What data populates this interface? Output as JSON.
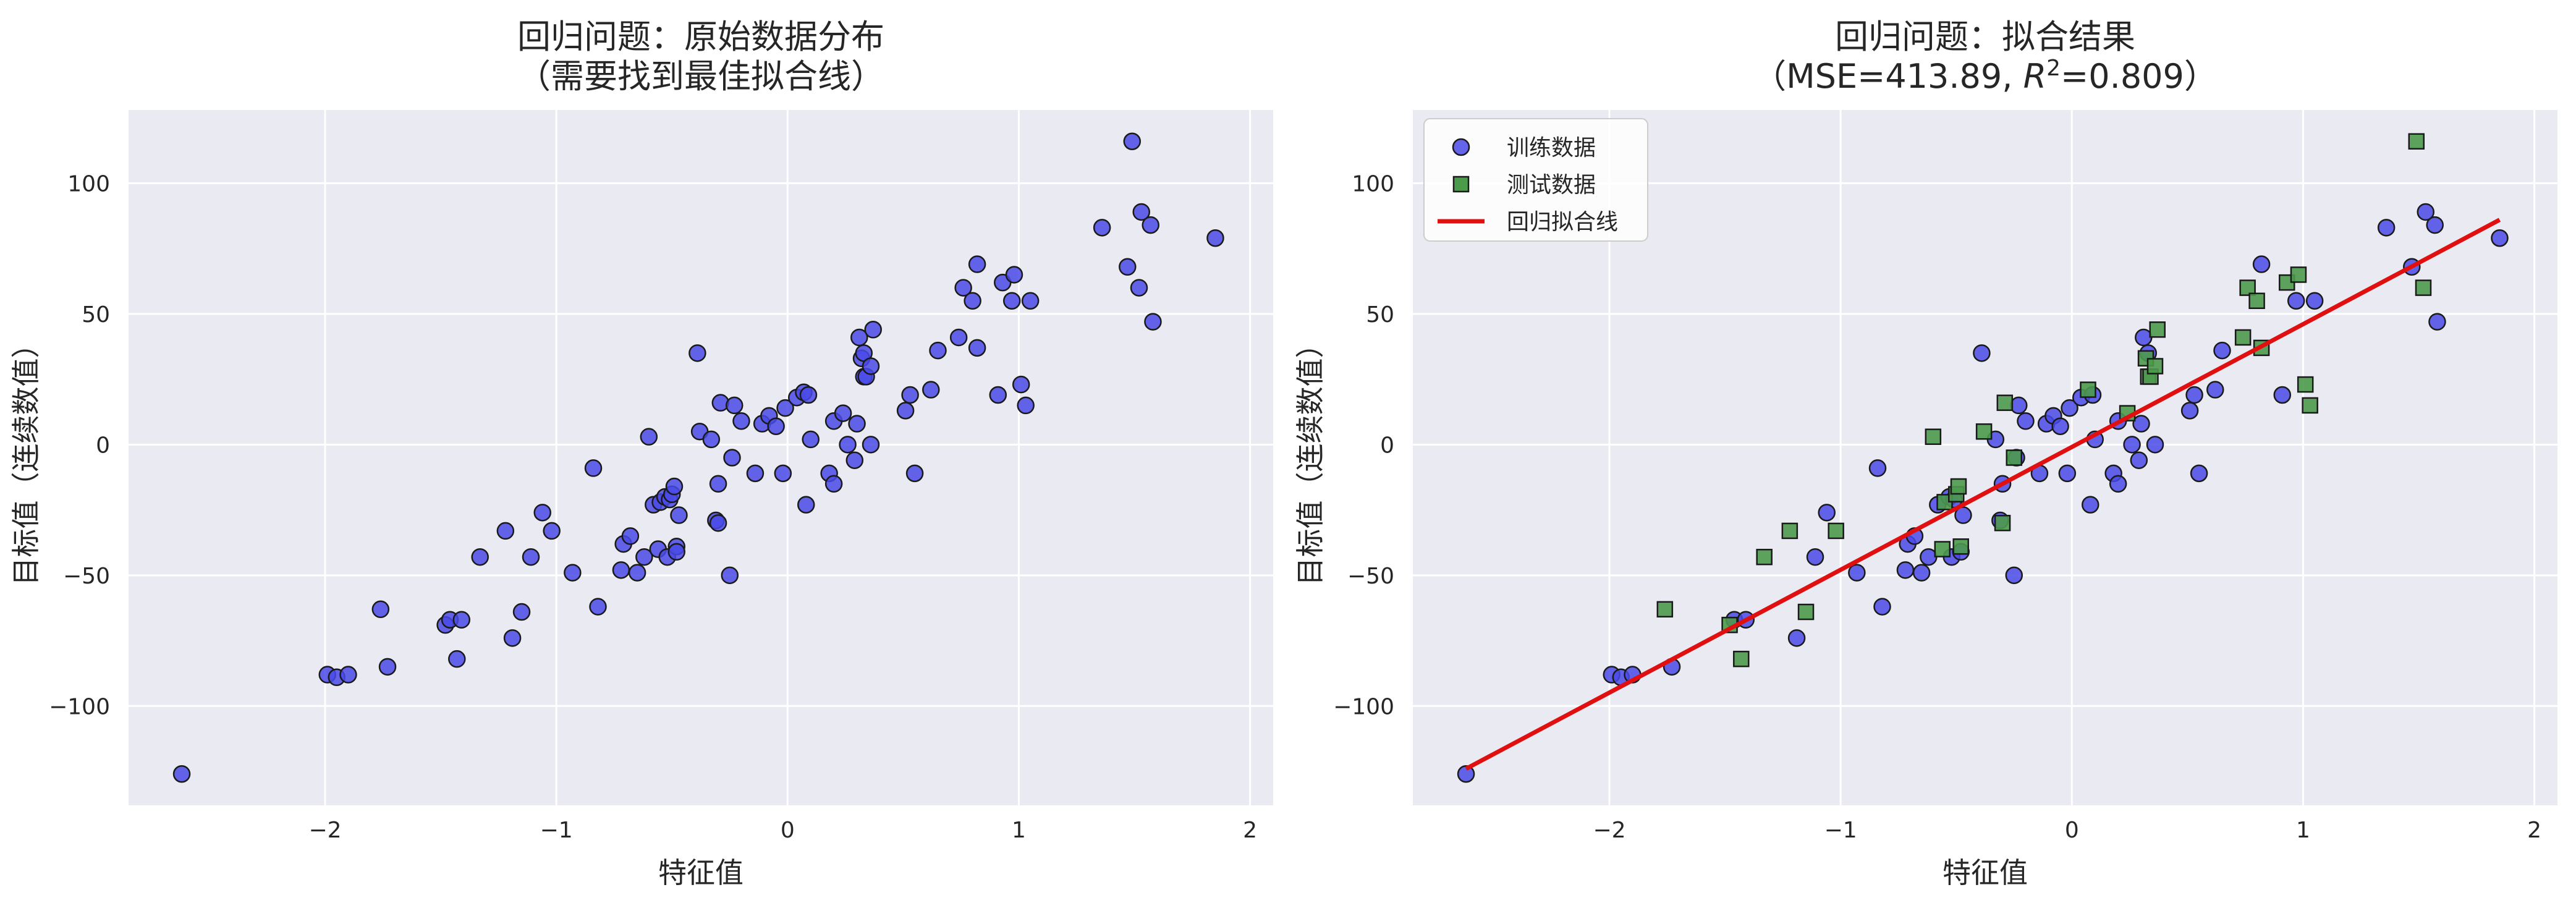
{
  "chart_data": [
    {
      "type": "scatter",
      "title": "回归问题：原始数据分布",
      "subtitle": "（需要找到最佳拟合线）",
      "xlabel": "特征值",
      "ylabel": "目标值（连续数值）",
      "xlim": [
        -2.85,
        2.1
      ],
      "ylim": [
        -138,
        128
      ],
      "xticks": [
        -2,
        -1,
        0,
        1,
        2
      ],
      "xtick_labels": [
        "−2",
        "−1",
        "0",
        "1",
        "2"
      ],
      "yticks": [
        -100,
        -50,
        0,
        50,
        100
      ],
      "ytick_labels": [
        "−100",
        "−50",
        "0",
        "50",
        "100"
      ],
      "grid": true,
      "background": "#eaeaf2",
      "series": [
        {
          "marker": "circle",
          "color": "#4a4ae8",
          "points": [
            [
              -2.62,
              -126
            ],
            [
              -1.99,
              -88
            ],
            [
              -1.95,
              -89
            ],
            [
              -1.9,
              -88
            ],
            [
              -1.76,
              -63
            ],
            [
              -1.73,
              -85
            ],
            [
              -1.48,
              -69
            ],
            [
              -1.46,
              -67
            ],
            [
              -1.43,
              -82
            ],
            [
              -1.41,
              -67
            ],
            [
              -1.33,
              -43
            ],
            [
              -1.22,
              -33
            ],
            [
              -1.19,
              -74
            ],
            [
              -1.15,
              -64
            ],
            [
              -1.11,
              -43
            ],
            [
              -1.06,
              -26
            ],
            [
              -1.02,
              -33
            ],
            [
              -0.93,
              -49
            ],
            [
              -0.82,
              -62
            ],
            [
              -0.84,
              -9
            ],
            [
              -0.72,
              -48
            ],
            [
              -0.71,
              -38
            ],
            [
              -0.68,
              -35
            ],
            [
              -0.65,
              -49
            ],
            [
              -0.62,
              -43
            ],
            [
              -0.6,
              3
            ],
            [
              -0.58,
              -23
            ],
            [
              -0.56,
              -40
            ],
            [
              -0.55,
              -22
            ],
            [
              -0.53,
              -20
            ],
            [
              -0.52,
              -43
            ],
            [
              -0.51,
              -21
            ],
            [
              -0.5,
              -19
            ],
            [
              -0.49,
              -16
            ],
            [
              -0.48,
              -39
            ],
            [
              -0.48,
              -41
            ],
            [
              -0.47,
              -27
            ],
            [
              -0.39,
              35
            ],
            [
              -0.38,
              5
            ],
            [
              -0.33,
              2
            ],
            [
              -0.31,
              -29
            ],
            [
              -0.3,
              -30
            ],
            [
              -0.3,
              -15
            ],
            [
              -0.29,
              16
            ],
            [
              -0.25,
              -50
            ],
            [
              -0.24,
              -5
            ],
            [
              -0.23,
              15
            ],
            [
              -0.2,
              9
            ],
            [
              -0.14,
              -11
            ],
            [
              -0.11,
              8
            ],
            [
              -0.08,
              11
            ],
            [
              -0.05,
              7
            ],
            [
              -0.02,
              -11
            ],
            [
              -0.01,
              14
            ],
            [
              0.04,
              18
            ],
            [
              0.07,
              20
            ],
            [
              0.08,
              -23
            ],
            [
              0.09,
              19
            ],
            [
              0.1,
              2
            ],
            [
              0.18,
              -11
            ],
            [
              0.2,
              -15
            ],
            [
              0.2,
              9
            ],
            [
              0.24,
              12
            ],
            [
              0.26,
              0
            ],
            [
              0.29,
              -6
            ],
            [
              0.3,
              8
            ],
            [
              0.31,
              41
            ],
            [
              0.32,
              33
            ],
            [
              0.33,
              26
            ],
            [
              0.33,
              35
            ],
            [
              0.34,
              26
            ],
            [
              0.36,
              0
            ],
            [
              0.36,
              30
            ],
            [
              0.37,
              44
            ],
            [
              0.51,
              13
            ],
            [
              0.53,
              19
            ],
            [
              0.55,
              -11
            ],
            [
              0.62,
              21
            ],
            [
              0.65,
              36
            ],
            [
              0.74,
              41
            ],
            [
              0.76,
              60
            ],
            [
              0.8,
              55
            ],
            [
              0.82,
              69
            ],
            [
              0.82,
              37
            ],
            [
              0.91,
              19
            ],
            [
              0.93,
              62
            ],
            [
              0.97,
              55
            ],
            [
              0.98,
              65
            ],
            [
              1.01,
              23
            ],
            [
              1.03,
              15
            ],
            [
              1.05,
              55
            ],
            [
              1.36,
              83
            ],
            [
              1.47,
              68
            ],
            [
              1.49,
              116
            ],
            [
              1.52,
              60
            ],
            [
              1.53,
              89
            ],
            [
              1.57,
              84
            ],
            [
              1.58,
              47
            ],
            [
              1.85,
              79
            ]
          ]
        }
      ]
    },
    {
      "type": "scatter",
      "title": "回归问题：拟合结果",
      "subtitle_prefix": "（MSE=413.89, ",
      "subtitle_var": "R",
      "subtitle_sup": "2",
      "subtitle_suffix": "=0.809）",
      "xlabel": "特征值",
      "ylabel": "目标值（连续数值）",
      "xlim": [
        -2.85,
        2.1
      ],
      "ylim": [
        -138,
        128
      ],
      "xticks": [
        -2,
        -1,
        0,
        1,
        2
      ],
      "xtick_labels": [
        "−2",
        "−1",
        "0",
        "1",
        "2"
      ],
      "yticks": [
        -100,
        -50,
        0,
        50,
        100
      ],
      "ytick_labels": [
        "−100",
        "−50",
        "0",
        "50",
        "100"
      ],
      "grid": true,
      "background": "#eaeaf2",
      "legend_position": "top-left",
      "series": [
        {
          "name": "训练数据",
          "marker": "circle",
          "color": "#4a4ae8",
          "points": [
            [
              -2.62,
              -126
            ],
            [
              -1.99,
              -88
            ],
            [
              -1.95,
              -89
            ],
            [
              -1.9,
              -88
            ],
            [
              -1.73,
              -85
            ],
            [
              -1.46,
              -67
            ],
            [
              -1.41,
              -67
            ],
            [
              -1.19,
              -74
            ],
            [
              -1.11,
              -43
            ],
            [
              -1.06,
              -26
            ],
            [
              -0.93,
              -49
            ],
            [
              -0.84,
              -9
            ],
            [
              -0.82,
              -62
            ],
            [
              -0.72,
              -48
            ],
            [
              -0.71,
              -38
            ],
            [
              -0.68,
              -35
            ],
            [
              -0.65,
              -49
            ],
            [
              -0.62,
              -43
            ],
            [
              -0.58,
              -23
            ],
            [
              -0.53,
              -20
            ],
            [
              -0.52,
              -43
            ],
            [
              -0.51,
              -21
            ],
            [
              -0.48,
              -41
            ],
            [
              -0.47,
              -27
            ],
            [
              -0.39,
              35
            ],
            [
              -0.33,
              2
            ],
            [
              -0.31,
              -29
            ],
            [
              -0.3,
              -15
            ],
            [
              -0.25,
              -50
            ],
            [
              -0.24,
              -5
            ],
            [
              -0.23,
              15
            ],
            [
              -0.2,
              9
            ],
            [
              -0.14,
              -11
            ],
            [
              -0.11,
              8
            ],
            [
              -0.08,
              11
            ],
            [
              -0.05,
              7
            ],
            [
              -0.02,
              -11
            ],
            [
              -0.01,
              14
            ],
            [
              0.04,
              18
            ],
            [
              0.08,
              -23
            ],
            [
              0.09,
              19
            ],
            [
              0.1,
              2
            ],
            [
              0.18,
              -11
            ],
            [
              0.2,
              -15
            ],
            [
              0.2,
              9
            ],
            [
              0.26,
              0
            ],
            [
              0.29,
              -6
            ],
            [
              0.3,
              8
            ],
            [
              0.31,
              41
            ],
            [
              0.33,
              35
            ],
            [
              0.36,
              0
            ],
            [
              0.51,
              13
            ],
            [
              0.53,
              19
            ],
            [
              0.55,
              -11
            ],
            [
              0.62,
              21
            ],
            [
              0.65,
              36
            ],
            [
              0.82,
              69
            ],
            [
              0.91,
              19
            ],
            [
              0.97,
              55
            ],
            [
              1.05,
              55
            ],
            [
              1.36,
              83
            ],
            [
              1.47,
              68
            ],
            [
              1.53,
              89
            ],
            [
              1.57,
              84
            ],
            [
              1.58,
              47
            ],
            [
              1.85,
              79
            ]
          ]
        },
        {
          "name": "测试数据",
          "marker": "square",
          "color": "#4c9a4c",
          "points": [
            [
              -1.76,
              -63
            ],
            [
              -1.48,
              -69
            ],
            [
              -1.43,
              -82
            ],
            [
              -1.33,
              -43
            ],
            [
              -1.22,
              -33
            ],
            [
              -1.15,
              -64
            ],
            [
              -1.02,
              -33
            ],
            [
              -0.6,
              3
            ],
            [
              -0.56,
              -40
            ],
            [
              -0.55,
              -22
            ],
            [
              -0.5,
              -19
            ],
            [
              -0.49,
              -16
            ],
            [
              -0.48,
              -39
            ],
            [
              -0.38,
              5
            ],
            [
              -0.3,
              -30
            ],
            [
              -0.29,
              16
            ],
            [
              -0.25,
              -5
            ],
            [
              0.07,
              21
            ],
            [
              0.24,
              12
            ],
            [
              0.32,
              33
            ],
            [
              0.33,
              26
            ],
            [
              0.34,
              26
            ],
            [
              0.36,
              30
            ],
            [
              0.37,
              44
            ],
            [
              0.74,
              41
            ],
            [
              0.76,
              60
            ],
            [
              0.8,
              55
            ],
            [
              0.82,
              37
            ],
            [
              0.93,
              62
            ],
            [
              0.98,
              65
            ],
            [
              1.01,
              23
            ],
            [
              1.03,
              15
            ],
            [
              1.49,
              116
            ],
            [
              1.52,
              60
            ]
          ]
        },
        {
          "name": "回归拟合线",
          "marker": "line",
          "color": "#e01010",
          "points": [
            [
              -2.62,
              -124
            ],
            [
              1.85,
              86
            ]
          ]
        }
      ]
    }
  ]
}
